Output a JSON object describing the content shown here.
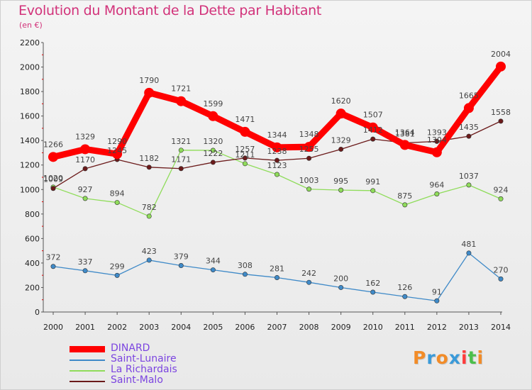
{
  "title": "Evolution du Montant de la Dette par Habitant",
  "subtitle": "(en €)",
  "brand": "Proxiti",
  "chart_data": {
    "type": "line",
    "title": "Evolution du Montant de la Dette par Habitant",
    "subtitle": "(en €)",
    "x": [
      2000,
      2001,
      2002,
      2003,
      2004,
      2005,
      2006,
      2007,
      2008,
      2009,
      2010,
      2011,
      2012,
      2013,
      2014
    ],
    "ylim": [
      0,
      2200
    ],
    "yticks": [
      0,
      200,
      400,
      600,
      800,
      1000,
      1200,
      1400,
      1600,
      1800,
      2000,
      2200
    ],
    "grid": false,
    "legend_position": "bottom-left",
    "series": [
      {
        "name": "Saint-Lunaire",
        "color": "#3f8ac8",
        "values": [
          372,
          337,
          299,
          423,
          379,
          344,
          308,
          281,
          242,
          200,
          162,
          126,
          91,
          481,
          270
        ]
      },
      {
        "name": "La Richardais",
        "color": "#8fdc5a",
        "values": [
          1020,
          927,
          894,
          782,
          1321,
          1320,
          1211,
          1123,
          1003,
          995,
          991,
          875,
          964,
          1037,
          924
        ]
      },
      {
        "name": "Saint-Malo",
        "color": "#6b1a1a",
        "values": [
          1009,
          1170,
          1245,
          1182,
          1171,
          1222,
          1257,
          1238,
          1255,
          1329,
          1412,
          1381,
          1393,
          1435,
          1558
        ]
      },
      {
        "name": "DINARD",
        "color": "#ff0000",
        "values": [
          1266,
          1329,
          1290,
          1790,
          1721,
          1599,
          1471,
          1344,
          1348,
          1620,
          1507,
          1364,
          1304,
          1665,
          2004
        ]
      }
    ],
    "data_labels": [
      {
        "text": "372"
      },
      {
        "text": "337"
      },
      {
        "text": "299"
      },
      {
        "text": "423"
      },
      {
        "text": "379"
      },
      {
        "text": "344"
      },
      {
        "text": "308"
      },
      {
        "text": "281"
      },
      {
        "text": "242"
      },
      {
        "text": "200"
      },
      {
        "text": "162"
      },
      {
        "text": "126"
      },
      {
        "text": "91"
      },
      {
        "text": "481"
      },
      {
        "text": "270"
      },
      {
        "text": "1020"
      },
      {
        "text": "927"
      },
      {
        "text": "894"
      },
      {
        "text": "782"
      },
      {
        "text": "1321"
      },
      {
        "text": "1320"
      },
      {
        "text": "1211"
      },
      {
        "text": "1123"
      },
      {
        "text": "1003"
      },
      {
        "text": "995"
      },
      {
        "text": "991"
      },
      {
        "text": "875"
      },
      {
        "text": "964"
      },
      {
        "text": "1037"
      },
      {
        "text": "924"
      },
      {
        "text": "1009"
      },
      {
        "text": "1170"
      },
      {
        "text": "1245"
      },
      {
        "text": "1182"
      },
      {
        "text": "1171"
      },
      {
        "text": "1222"
      },
      {
        "text": "1257"
      },
      {
        "text": "1238"
      },
      {
        "text": "1255"
      },
      {
        "text": "1329"
      },
      {
        "text": "1412"
      },
      {
        "text": "1381"
      },
      {
        "text": "1393"
      },
      {
        "text": "1435"
      },
      {
        "text": "1558"
      },
      {
        "text": "1266"
      },
      {
        "text": "1329"
      },
      {
        "text": "1290"
      },
      {
        "text": "1790"
      },
      {
        "text": "1721"
      },
      {
        "text": "1599"
      },
      {
        "text": "1471"
      },
      {
        "text": "1344"
      },
      {
        "text": "1348"
      },
      {
        "text": "1620"
      },
      {
        "text": "1507"
      },
      {
        "text": "1364"
      },
      {
        "text": "1304"
      },
      {
        "text": "1665"
      },
      {
        "text": "2004"
      }
    ]
  }
}
